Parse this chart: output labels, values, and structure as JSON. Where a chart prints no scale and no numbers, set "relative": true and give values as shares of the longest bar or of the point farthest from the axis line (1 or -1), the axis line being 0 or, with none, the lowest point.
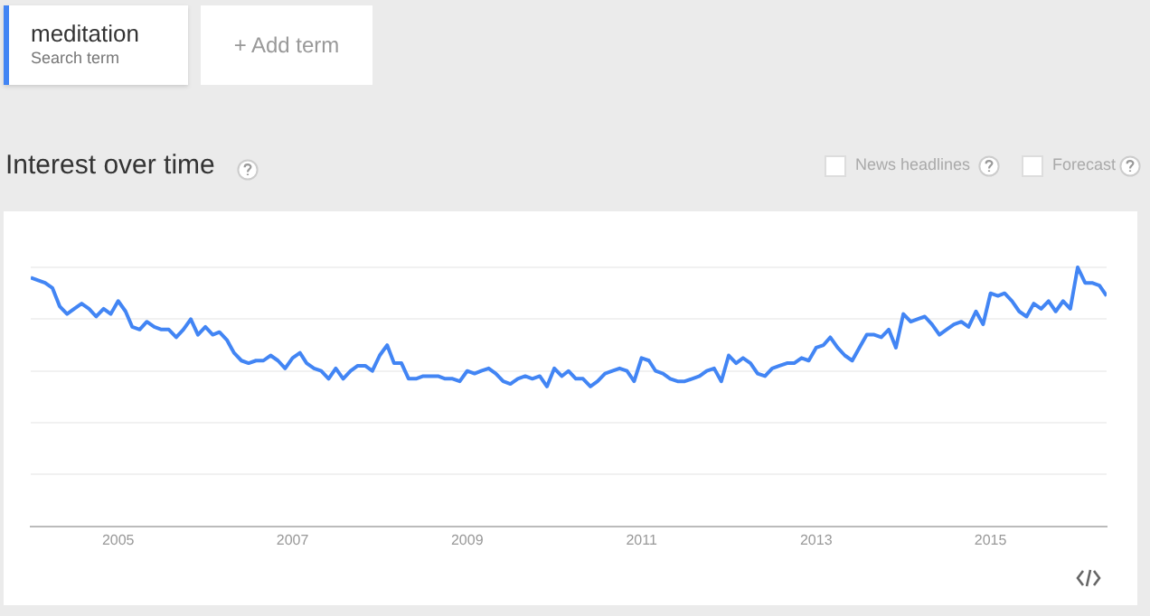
{
  "chart_data": {
    "type": "line",
    "title": "Interest over time",
    "relative": true,
    "grid": "y",
    "legend": "top left",
    "marker": "none",
    "line_style": "solid",
    "annotations": [
      "Search term",
      "+ Add term",
      "News headlines",
      "Forecast"
    ],
    "xlim": [
      "2004-01",
      "2016-05"
    ],
    "xticks": [
      "2005",
      "2007",
      "2009",
      "2011",
      "2013",
      "2015"
    ],
    "series": [
      {
        "name": "meditation",
        "color": "#4285f4",
        "x": [
          "2004-01",
          "2004-02",
          "2004-03",
          "2004-04",
          "2004-05",
          "2004-06",
          "2004-07",
          "2004-08",
          "2004-09",
          "2004-10",
          "2004-11",
          "2004-12",
          "2005-01",
          "2005-02",
          "2005-03",
          "2005-04",
          "2005-05",
          "2005-06",
          "2005-07",
          "2005-08",
          "2005-09",
          "2005-10",
          "2005-11",
          "2005-12",
          "2006-01",
          "2006-02",
          "2006-03",
          "2006-04",
          "2006-05",
          "2006-06",
          "2006-07",
          "2006-08",
          "2006-09",
          "2006-10",
          "2006-11",
          "2006-12",
          "2007-01",
          "2007-02",
          "2007-03",
          "2007-04",
          "2007-05",
          "2007-06",
          "2007-07",
          "2007-08",
          "2007-09",
          "2007-10",
          "2007-11",
          "2007-12",
          "2008-01",
          "2008-02",
          "2008-03",
          "2008-04",
          "2008-05",
          "2008-06",
          "2008-07",
          "2008-08",
          "2008-09",
          "2008-10",
          "2008-11",
          "2008-12",
          "2009-01",
          "2009-02",
          "2009-03",
          "2009-04",
          "2009-05",
          "2009-06",
          "2009-07",
          "2009-08",
          "2009-09",
          "2009-10",
          "2009-11",
          "2009-12",
          "2010-01",
          "2010-02",
          "2010-03",
          "2010-04",
          "2010-05",
          "2010-06",
          "2010-07",
          "2010-08",
          "2010-09",
          "2010-10",
          "2010-11",
          "2010-12",
          "2011-01",
          "2011-02",
          "2011-03",
          "2011-04",
          "2011-05",
          "2011-06",
          "2011-07",
          "2011-08",
          "2011-09",
          "2011-10",
          "2011-11",
          "2011-12",
          "2012-01",
          "2012-02",
          "2012-03",
          "2012-04",
          "2012-05",
          "2012-06",
          "2012-07",
          "2012-08",
          "2012-09",
          "2012-10",
          "2012-11",
          "2012-12",
          "2013-01",
          "2013-02",
          "2013-03",
          "2013-04",
          "2013-05",
          "2013-06",
          "2013-07",
          "2013-08",
          "2013-09",
          "2013-10",
          "2013-11",
          "2013-12",
          "2014-01",
          "2014-02",
          "2014-03",
          "2014-04",
          "2014-05",
          "2014-06",
          "2014-07",
          "2014-08",
          "2014-09",
          "2014-10",
          "2014-11",
          "2014-12",
          "2015-01",
          "2015-02",
          "2015-03",
          "2015-04",
          "2015-05",
          "2015-06",
          "2015-07",
          "2015-08",
          "2015-09",
          "2015-10",
          "2015-11",
          "2015-12",
          "2016-01",
          "2016-02",
          "2016-03",
          "2016-04",
          "2016-05"
        ],
        "values": [
          0.96,
          0.95,
          0.94,
          0.92,
          0.85,
          0.82,
          0.84,
          0.86,
          0.84,
          0.81,
          0.84,
          0.82,
          0.87,
          0.83,
          0.77,
          0.76,
          0.79,
          0.77,
          0.76,
          0.76,
          0.73,
          0.76,
          0.8,
          0.74,
          0.77,
          0.74,
          0.75,
          0.72,
          0.67,
          0.64,
          0.63,
          0.64,
          0.64,
          0.66,
          0.64,
          0.61,
          0.65,
          0.67,
          0.63,
          0.61,
          0.6,
          0.57,
          0.61,
          0.57,
          0.6,
          0.62,
          0.62,
          0.6,
          0.66,
          0.7,
          0.63,
          0.63,
          0.57,
          0.57,
          0.58,
          0.58,
          0.58,
          0.57,
          0.57,
          0.56,
          0.6,
          0.59,
          0.6,
          0.61,
          0.59,
          0.56,
          0.55,
          0.57,
          0.58,
          0.57,
          0.58,
          0.54,
          0.61,
          0.58,
          0.6,
          0.57,
          0.57,
          0.54,
          0.56,
          0.59,
          0.6,
          0.61,
          0.6,
          0.56,
          0.65,
          0.64,
          0.6,
          0.59,
          0.57,
          0.56,
          0.56,
          0.57,
          0.58,
          0.6,
          0.61,
          0.56,
          0.66,
          0.63,
          0.65,
          0.63,
          0.59,
          0.58,
          0.61,
          0.62,
          0.63,
          0.63,
          0.65,
          0.64,
          0.69,
          0.7,
          0.73,
          0.69,
          0.66,
          0.64,
          0.69,
          0.74,
          0.74,
          0.73,
          0.76,
          0.69,
          0.82,
          0.79,
          0.8,
          0.81,
          0.78,
          0.74,
          0.76,
          0.78,
          0.79,
          0.77,
          0.83,
          0.78,
          0.9,
          0.89,
          0.9,
          0.87,
          0.83,
          0.81,
          0.86,
          0.84,
          0.87,
          0.83,
          0.87,
          0.84,
          1,
          0.94,
          0.94,
          0.93,
          0.89
        ]
      }
    ]
  }
}
